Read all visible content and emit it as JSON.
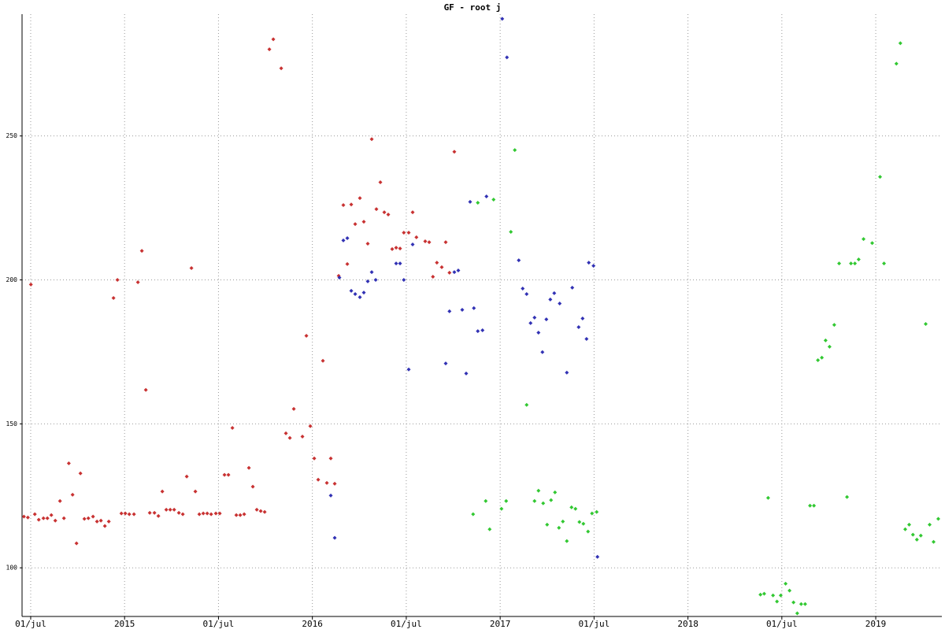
{
  "chart_data": {
    "type": "scatter",
    "title": "GF - root j",
    "xlim": [
      2014.454,
      2019.352
    ],
    "ylim": [
      83.1,
      292.3
    ],
    "xticks": [
      {
        "value": 2014.5,
        "label": "01/jul"
      },
      2015,
      {
        "value": 2015.5,
        "label": "01/jul"
      },
      2016,
      {
        "value": 2016.5,
        "label": "01/jul"
      },
      2017,
      {
        "value": 2017.5,
        "label": "01/jul"
      },
      2018,
      {
        "value": 2018.5,
        "label": "01/jul"
      },
      2019
    ],
    "yticks": [
      100,
      150,
      200,
      250
    ],
    "grid": true,
    "series": [
      {
        "color": "#c83232",
        "x": [
          2014.464,
          2014.485,
          2014.501,
          2014.522,
          2014.543,
          2014.568,
          2014.589,
          2014.61,
          2014.631,
          2014.656,
          2014.677,
          2014.703,
          2014.723,
          2014.744,
          2014.765,
          2014.786,
          2014.807,
          2014.832,
          2014.853,
          2014.874,
          2014.895,
          2014.916,
          2014.941,
          2014.962,
          2014.983,
          2015.004,
          2015.025,
          2015.05,
          2015.071,
          2015.092,
          2015.113,
          2015.134,
          2015.159,
          2015.18,
          2015.201,
          2015.222,
          2015.243,
          2015.264,
          2015.289,
          2015.31,
          2015.331,
          2015.356,
          2015.377,
          2015.398,
          2015.419,
          2015.44,
          2015.461,
          2015.486,
          2015.507,
          2015.532,
          2015.553,
          2015.574,
          2015.595,
          2015.616,
          2015.637,
          2015.662,
          2015.683,
          2015.704,
          2015.725,
          2015.746,
          2015.771,
          2015.792,
          2015.834,
          2015.859,
          2015.88,
          2015.901,
          2015.947,
          2015.968,
          2015.989,
          2016.01,
          2016.031,
          2016.056,
          2016.077,
          2016.098,
          2016.119,
          2016.14,
          2016.165,
          2016.186,
          2016.207,
          2016.228,
          2016.253,
          2016.274,
          2016.295,
          2016.316,
          2016.341,
          2016.362,
          2016.383,
          2016.404,
          2016.425,
          2016.446,
          2016.467,
          2016.487,
          2016.513,
          2016.534,
          2016.554,
          2016.601,
          2016.622,
          2016.642,
          2016.663,
          2016.689,
          2016.71,
          2016.73,
          2016.756
        ],
        "values": [
          117.8,
          117.5,
          198.4,
          118.6,
          116.7,
          117.2,
          117.2,
          118.3,
          116.4,
          123.2,
          117.2,
          136.3,
          125.4,
          108.5,
          132.8,
          117.0,
          117.2,
          117.8,
          116.1,
          116.4,
          114.5,
          116.1,
          193.7,
          200.0,
          118.9,
          118.9,
          118.6,
          118.6,
          199.2,
          210.1,
          161.8,
          119.1,
          119.1,
          118.0,
          126.5,
          120.2,
          120.2,
          120.2,
          119.1,
          118.6,
          131.7,
          204.1,
          126.5,
          118.6,
          118.9,
          118.9,
          118.6,
          118.9,
          118.9,
          132.3,
          132.3,
          148.6,
          118.3,
          118.3,
          118.6,
          134.7,
          128.2,
          120.2,
          119.7,
          119.4,
          280.1,
          283.6,
          273.5,
          146.7,
          145.1,
          155.2,
          145.6,
          180.6,
          149.2,
          138.0,
          130.6,
          171.9,
          129.5,
          138.0,
          129.2,
          201.4,
          226.0,
          205.5,
          226.2,
          219.4,
          228.4,
          220.2,
          212.6,
          248.9,
          224.6,
          233.9,
          223.5,
          222.7,
          210.7,
          211.2,
          210.9,
          216.4,
          216.4,
          223.5,
          214.8,
          213.4,
          213.1,
          201.1,
          206.0,
          204.4,
          213.1,
          202.5,
          244.5
        ]
      },
      {
        "color": "#3232b4",
        "x": [
          2016.098,
          2016.119,
          2016.144,
          2016.165,
          2016.186,
          2016.207,
          2016.228,
          2016.253,
          2016.274,
          2016.295,
          2016.316,
          2016.337,
          2016.446,
          2016.467,
          2016.487,
          2016.513,
          2016.534,
          2016.71,
          2016.73,
          2016.756,
          2016.777,
          2016.798,
          2016.819,
          2016.84,
          2016.86,
          2016.881,
          2016.906,
          2016.927,
          2017.011,
          2017.036,
          2017.099,
          2017.12,
          2017.141,
          2017.162,
          2017.183,
          2017.204,
          2017.225,
          2017.246,
          2017.267,
          2017.288,
          2017.317,
          2017.355,
          2017.384,
          2017.418,
          2017.439,
          2017.46,
          2017.472,
          2017.497,
          2017.518
        ],
        "values": [
          125.1,
          110.4,
          200.8,
          213.7,
          214.5,
          196.2,
          195.1,
          194.0,
          195.6,
          199.5,
          202.7,
          200.0,
          205.7,
          205.7,
          200.0,
          168.9,
          212.3,
          171.0,
          189.1,
          202.7,
          203.3,
          189.6,
          167.5,
          227.1,
          190.2,
          182.2,
          182.5,
          229.0,
          290.7,
          277.3,
          206.8,
          197.0,
          195.1,
          185.0,
          186.9,
          181.7,
          174.9,
          186.3,
          193.2,
          195.4,
          191.8,
          167.8,
          197.3,
          183.6,
          186.6,
          179.5,
          206.0,
          204.9,
          103.8
        ]
      },
      {
        "color": "#32c832",
        "x": [
          2016.856,
          2016.881,
          2016.923,
          2016.944,
          2016.965,
          2017.007,
          2017.032,
          2017.057,
          2017.078,
          2017.141,
          2017.183,
          2017.204,
          2017.229,
          2017.25,
          2017.271,
          2017.292,
          2017.313,
          2017.334,
          2017.355,
          2017.38,
          2017.401,
          2017.422,
          2017.443,
          2017.468,
          2017.489,
          2017.514,
          2018.386,
          2018.406,
          2018.427,
          2018.453,
          2018.474,
          2018.494,
          2018.52,
          2018.541,
          2018.562,
          2018.582,
          2018.603,
          2018.624,
          2018.65,
          2018.671,
          2018.692,
          2018.713,
          2018.733,
          2018.754,
          2018.779,
          2018.805,
          2018.847,
          2018.868,
          2018.889,
          2018.909,
          2018.935,
          2018.981,
          2019.023,
          2019.044,
          2019.11,
          2019.131,
          2019.157,
          2019.178,
          2019.198,
          2019.219,
          2019.24,
          2019.266,
          2019.287,
          2019.308,
          2019.333
        ],
        "values": [
          118.6,
          226.8,
          123.2,
          113.4,
          227.9,
          120.5,
          123.2,
          216.7,
          245.1,
          156.6,
          123.2,
          126.8,
          122.4,
          115.0,
          123.5,
          126.2,
          113.9,
          116.1,
          109.3,
          121.0,
          120.5,
          115.9,
          115.3,
          112.6,
          118.9,
          119.4,
          90.7,
          91.0,
          124.3,
          90.4,
          88.3,
          90.4,
          94.5,
          92.1,
          88.0,
          84.2,
          87.4,
          87.4,
          121.6,
          121.6,
          172.1,
          173.0,
          179.0,
          176.8,
          184.4,
          205.7,
          124.6,
          205.7,
          205.7,
          207.1,
          214.2,
          212.8,
          235.8,
          205.7,
          275.1,
          282.2,
          113.4,
          115.0,
          111.5,
          109.8,
          111.2,
          184.7,
          115.0,
          109.0,
          117.0
        ]
      }
    ]
  }
}
